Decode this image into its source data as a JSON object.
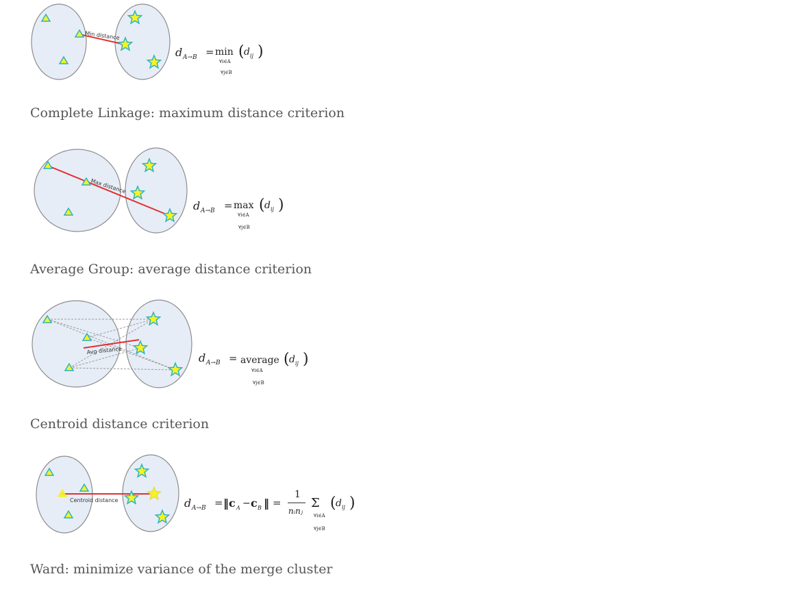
{
  "colors": {
    "cluster_fill": "#e7edf6",
    "cluster_stroke": "#8c8c8c",
    "triangle_fill": "#f5f225",
    "triangle_stroke": "#2ab3c4",
    "star_fill": "#f5f225",
    "star_stroke": "#2ab3c4",
    "distance_line": "#e03030",
    "dashed_line": "#9a9a9a",
    "caption_text": "#555555"
  },
  "sections": [
    {
      "line_label": "Min distance",
      "formula": {
        "lhs": "d",
        "lhs_sub": "A→B",
        "eq": "=",
        "op": "min",
        "arg": "d",
        "arg_sub": "ij",
        "sub1": "∀i∈A",
        "sub2": "∀j∈B"
      },
      "caption": ""
    },
    {
      "line_label": "Max distance",
      "formula": {
        "lhs": "d",
        "lhs_sub": "A→B",
        "eq": "=",
        "op": "max",
        "arg": "d",
        "arg_sub": "ij",
        "sub1": "∀i∈A",
        "sub2": "∀j∈B"
      },
      "caption": "Complete Linkage: maximum distance criterion"
    },
    {
      "line_label": "Avg distance",
      "formula": {
        "lhs": "d",
        "lhs_sub": "A→B",
        "eq": "=",
        "op": "average",
        "arg": "d",
        "arg_sub": "ij",
        "sub1": "∀i∈A",
        "sub2": "∀j∈B"
      },
      "caption": "Average Group: average distance criterion"
    },
    {
      "line_label": "Centroid distance",
      "formula": {
        "lhs": "d",
        "lhs_sub": "A→B",
        "eq": "=",
        "norm": "‖c",
        "norm_sub_a": "A",
        "minus": "−",
        "norm_c2": "c",
        "norm_sub_b": "B",
        "norm_end": "‖",
        "eq2": "=",
        "numer": "1",
        "denom": "nᵢnⱼ",
        "op": "Σ",
        "arg": "d",
        "arg_sub": "ij",
        "sub1": "∀i∈A",
        "sub2": "∀j∈B"
      },
      "caption": "Centroid distance criterion"
    },
    {
      "caption": "Ward: minimize variance of the merge cluster"
    }
  ]
}
